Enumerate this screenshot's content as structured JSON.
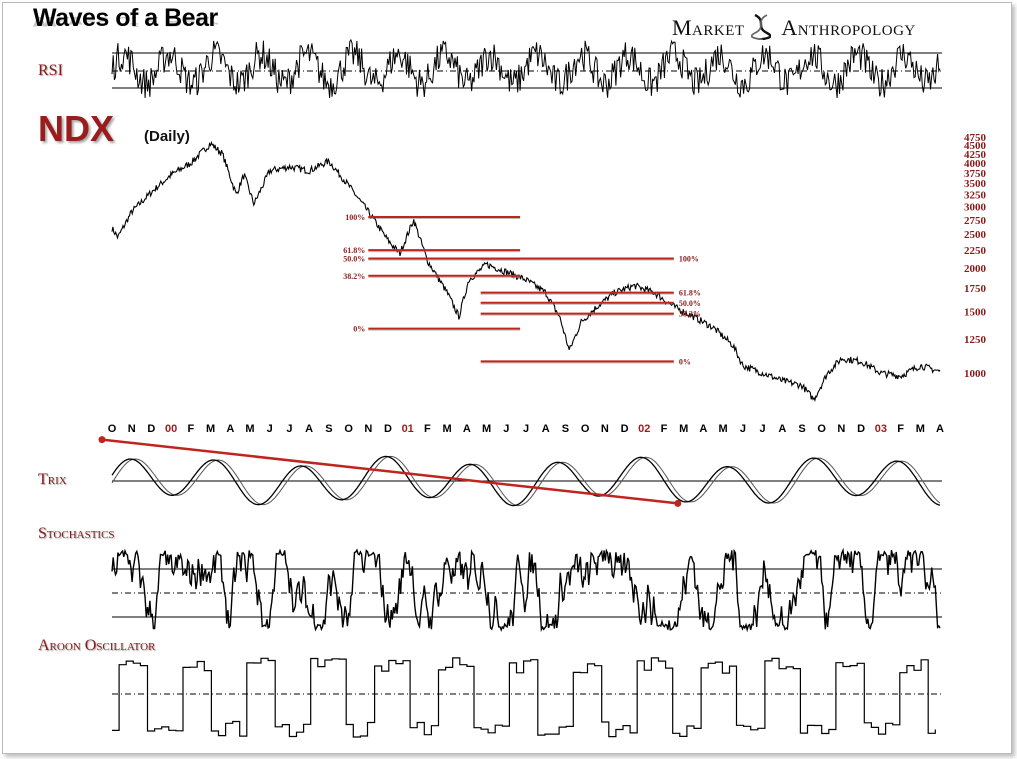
{
  "title": "Waves of a Bear",
  "brand": {
    "left": "Market",
    "right": "Anthropology",
    "logo_icon": "dna-helix-icon"
  },
  "colors": {
    "accent": "#9b1c1c",
    "fib": "#c0241e",
    "price": "#000000"
  },
  "chart_data": {
    "type": "line",
    "title": "NDX",
    "subtitle": "(Daily)",
    "x_months": [
      "O",
      "N",
      "D",
      "00",
      "F",
      "M",
      "A",
      "M",
      "J",
      "J",
      "A",
      "S",
      "O",
      "N",
      "D",
      "01",
      "F",
      "M",
      "A",
      "M",
      "J",
      "J",
      "A",
      "S",
      "O",
      "N",
      "D",
      "02",
      "F",
      "M",
      "A",
      "M",
      "J",
      "J",
      "A",
      "S",
      "O",
      "N",
      "D",
      "03",
      "F",
      "M",
      "A"
    ],
    "y_ticks": [
      "4750",
      "4500",
      "4250",
      "4000",
      "3750",
      "3500",
      "3250",
      "3000",
      "2750",
      "2500",
      "2250",
      "2000",
      "1750",
      "1500",
      "1250",
      "1000"
    ],
    "y_tick_values": [
      4750,
      4500,
      4250,
      4000,
      3750,
      3500,
      3250,
      3000,
      2750,
      2500,
      2250,
      2000,
      1750,
      1500,
      1250,
      1000
    ],
    "scale": "log",
    "price_keypoints": [
      {
        "m": 0,
        "v": 2600
      },
      {
        "m": 0.3,
        "v": 2450
      },
      {
        "m": 1,
        "v": 2900
      },
      {
        "m": 2,
        "v": 3300
      },
      {
        "m": 3,
        "v": 3700
      },
      {
        "m": 4,
        "v": 4000
      },
      {
        "m": 5,
        "v": 4550
      },
      {
        "m": 5.6,
        "v": 4250
      },
      {
        "m": 6.3,
        "v": 3250
      },
      {
        "m": 6.7,
        "v": 3700
      },
      {
        "m": 7.2,
        "v": 3050
      },
      {
        "m": 8,
        "v": 3800
      },
      {
        "m": 9,
        "v": 3900
      },
      {
        "m": 10,
        "v": 3800
      },
      {
        "m": 11,
        "v": 4050
      },
      {
        "m": 12,
        "v": 3450
      },
      {
        "m": 13,
        "v": 2900
      },
      {
        "m": 14,
        "v": 2400
      },
      {
        "m": 14.6,
        "v": 2200
      },
      {
        "m": 15.3,
        "v": 2750
      },
      {
        "m": 16,
        "v": 2100
      },
      {
        "m": 17,
        "v": 1700
      },
      {
        "m": 17.6,
        "v": 1450
      },
      {
        "m": 18.1,
        "v": 1850
      },
      {
        "m": 19,
        "v": 2050
      },
      {
        "m": 20,
        "v": 1950
      },
      {
        "m": 21,
        "v": 1850
      },
      {
        "m": 22,
        "v": 1700
      },
      {
        "m": 22.7,
        "v": 1450
      },
      {
        "m": 23.2,
        "v": 1160
      },
      {
        "m": 23.8,
        "v": 1400
      },
      {
        "m": 24.6,
        "v": 1550
      },
      {
        "m": 25.5,
        "v": 1700
      },
      {
        "m": 26.5,
        "v": 1780
      },
      {
        "m": 27.5,
        "v": 1700
      },
      {
        "m": 28.5,
        "v": 1550
      },
      {
        "m": 29.5,
        "v": 1450
      },
      {
        "m": 30.5,
        "v": 1350
      },
      {
        "m": 31.5,
        "v": 1200
      },
      {
        "m": 32,
        "v": 1050
      },
      {
        "m": 33,
        "v": 1000
      },
      {
        "m": 34,
        "v": 950
      },
      {
        "m": 35,
        "v": 920
      },
      {
        "m": 35.6,
        "v": 840
      },
      {
        "m": 36.3,
        "v": 1000
      },
      {
        "m": 37,
        "v": 1100
      },
      {
        "m": 38,
        "v": 1080
      },
      {
        "m": 39,
        "v": 1000
      },
      {
        "m": 40,
        "v": 980
      },
      {
        "m": 41,
        "v": 1050
      },
      {
        "m": 42,
        "v": 1010
      }
    ],
    "fib_sets": [
      {
        "name": "first-wave",
        "labels": [
          "100%",
          "61.8%",
          "50.0%",
          "38.2%",
          "0%"
        ],
        "values": [
          2800,
          2250,
          2130,
          1900,
          1340
        ],
        "x_start": 13.0,
        "x_end": 20.7,
        "label_side": "left"
      },
      {
        "name": "second-wave",
        "labels": [
          "100%",
          "61.8%",
          "50.0%",
          "38.2%",
          "0%"
        ],
        "values": [
          2130,
          1700,
          1590,
          1480,
          1080
        ],
        "x_start": 18.7,
        "x_end": 28.5,
        "label_side": "right"
      }
    ],
    "indicators": [
      {
        "name": "RSI",
        "label": "RSI"
      },
      {
        "name": "Trix",
        "label": "Trix"
      },
      {
        "name": "Stochastics",
        "label": "Stochastics"
      },
      {
        "name": "Aroon Oscillator",
        "label": "Aroon Oscillator"
      }
    ],
    "trix_trendline": {
      "m_start": 0,
      "m_end": 28.7,
      "level_start": 0.9,
      "level_end": -0.7
    }
  }
}
